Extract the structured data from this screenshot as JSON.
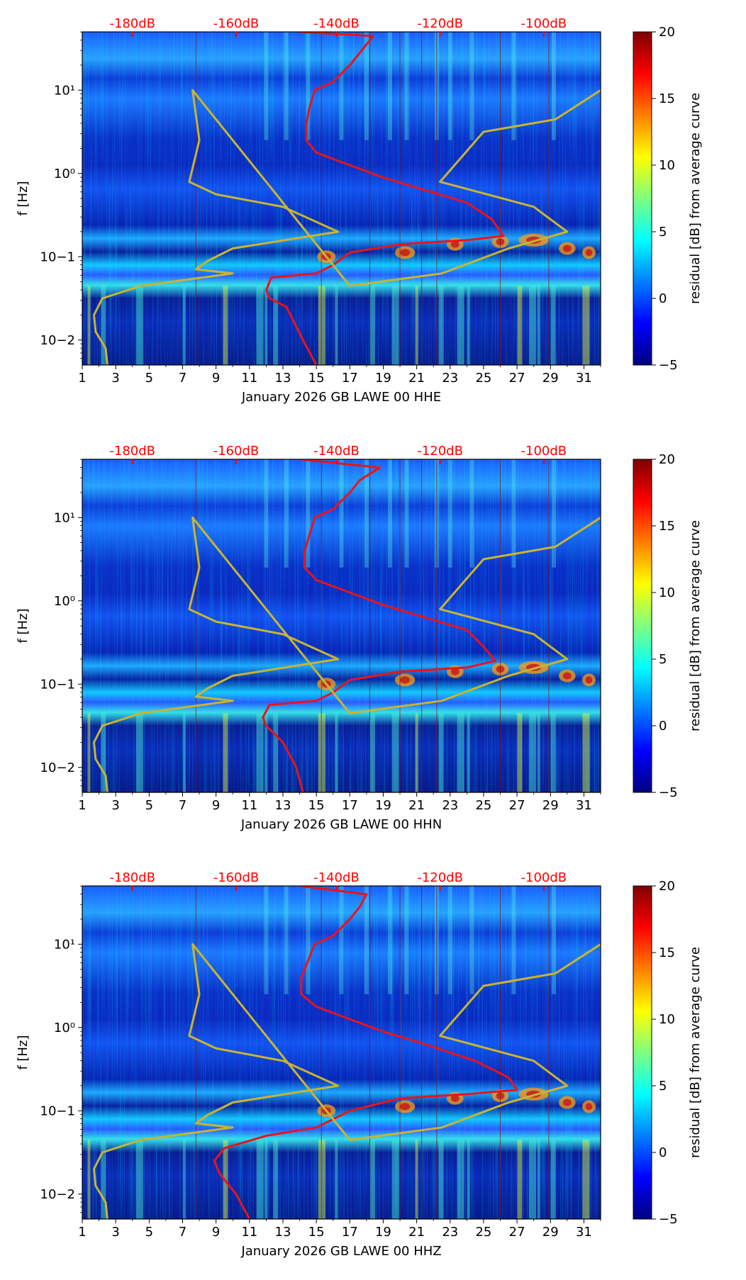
{
  "figure": {
    "title": ""
  },
  "colors": {
    "red_curve": "#e8141c",
    "yellow_curve": "#c8b432",
    "top_label": "#ff0000",
    "colormap": [
      "#00007f",
      "#0000ff",
      "#007fff",
      "#00ffff",
      "#7fff7f",
      "#ffff00",
      "#ff7f00",
      "#ff0000",
      "#7f0000"
    ]
  },
  "chart_data": [
    {
      "type": "heatmap",
      "xlabel": "January 2026 GB LAWE 00 HHE",
      "ylabel": "f [Hz]",
      "xlim": [
        1,
        32
      ],
      "ylim_log10": [
        -2.3,
        1.7
      ],
      "x_ticks": [
        "1",
        "3",
        "5",
        "7",
        "9",
        "11",
        "13",
        "15",
        "17",
        "19",
        "21",
        "23",
        "25",
        "27",
        "29",
        "31"
      ],
      "y_ticks": [
        "10−2",
        "10−1",
        "10⁰",
        "10¹"
      ],
      "top_ticks": [
        "-180dB",
        "-160dB",
        "-140dB",
        "-120dB",
        "-100dB"
      ],
      "colorbar": {
        "label": "residual [dB] from average curve",
        "range": [
          -5,
          20
        ],
        "ticks": [
          "−5",
          "0",
          "5",
          "10",
          "15",
          "20"
        ]
      },
      "series": [
        {
          "name": "average PSD (red)",
          "points": [
            [
              15.0,
              -2.3
            ],
            [
              14.2,
              -2.0
            ],
            [
              13.2,
              -1.6
            ],
            [
              12.2,
              -1.5
            ],
            [
              12.0,
              -1.4
            ],
            [
              12.3,
              -1.25
            ],
            [
              15.0,
              -1.2
            ],
            [
              16.0,
              -1.1
            ],
            [
              17.0,
              -0.95
            ],
            [
              20.0,
              -0.85
            ],
            [
              24.0,
              -0.8
            ],
            [
              26.2,
              -0.75
            ],
            [
              25.5,
              -0.55
            ],
            [
              24.0,
              -0.35
            ],
            [
              21.5,
              -0.2
            ],
            [
              19.0,
              -0.05
            ],
            [
              17.0,
              0.1
            ],
            [
              15.0,
              0.25
            ],
            [
              14.4,
              0.4
            ],
            [
              14.4,
              0.6
            ],
            [
              14.6,
              0.8
            ],
            [
              14.9,
              1.0
            ],
            [
              16.0,
              1.1
            ],
            [
              17.0,
              1.3
            ],
            [
              17.6,
              1.45
            ],
            [
              18.4,
              1.65
            ],
            [
              14.0,
              1.7
            ]
          ]
        },
        {
          "name": "noise model (yellow)",
          "points": [
            [
              2.5,
              -2.3
            ],
            [
              2.4,
              -2.1
            ],
            [
              1.8,
              -1.9
            ],
            [
              1.7,
              -1.7
            ],
            [
              2.2,
              -1.5
            ],
            [
              4.5,
              -1.35
            ],
            [
              10.0,
              -1.2
            ],
            [
              7.8,
              -1.15
            ],
            [
              8.5,
              -1.05
            ],
            [
              10.0,
              -0.9
            ],
            [
              16.3,
              -0.7
            ],
            [
              13.0,
              -0.4
            ],
            [
              9.0,
              -0.25
            ],
            [
              7.4,
              -0.1
            ],
            [
              8.0,
              0.4
            ],
            [
              7.6,
              1.0
            ],
            [
              17.0,
              -1.35
            ],
            [
              22.5,
              -1.2
            ],
            [
              26.5,
              -0.9
            ],
            [
              30.0,
              -0.7
            ],
            [
              28.0,
              -0.4
            ],
            [
              22.4,
              -0.1
            ],
            [
              25.0,
              0.5
            ],
            [
              29.3,
              0.65
            ],
            [
              32.0,
              1.0
            ]
          ]
        }
      ]
    },
    {
      "type": "heatmap",
      "xlabel": "January 2026 GB LAWE 00 HHN",
      "ylabel": "f [Hz]",
      "xlim": [
        1,
        32
      ],
      "ylim_log10": [
        -2.3,
        1.7
      ],
      "x_ticks": [
        "1",
        "3",
        "5",
        "7",
        "9",
        "11",
        "13",
        "15",
        "17",
        "19",
        "21",
        "23",
        "25",
        "27",
        "29",
        "31"
      ],
      "y_ticks": [
        "10−2",
        "10−1",
        "10⁰",
        "10¹"
      ],
      "top_ticks": [
        "-180dB",
        "-160dB",
        "-140dB",
        "-120dB",
        "-100dB"
      ],
      "colorbar": {
        "label": "residual [dB] from average curve",
        "range": [
          -5,
          20
        ],
        "ticks": [
          "−5",
          "0",
          "5",
          "10",
          "15",
          "20"
        ]
      },
      "series": [
        {
          "name": "average PSD (red)",
          "points": [
            [
              14.2,
              -2.3
            ],
            [
              13.8,
              -2.0
            ],
            [
              13.0,
              -1.7
            ],
            [
              12.0,
              -1.5
            ],
            [
              11.8,
              -1.4
            ],
            [
              12.2,
              -1.25
            ],
            [
              15.0,
              -1.2
            ],
            [
              16.0,
              -1.1
            ],
            [
              17.0,
              -0.95
            ],
            [
              20.0,
              -0.85
            ],
            [
              24.0,
              -0.8
            ],
            [
              25.7,
              -0.72
            ],
            [
              25.0,
              -0.55
            ],
            [
              24.0,
              -0.35
            ],
            [
              21.5,
              -0.2
            ],
            [
              19.0,
              -0.05
            ],
            [
              17.0,
              0.1
            ],
            [
              15.0,
              0.25
            ],
            [
              14.3,
              0.4
            ],
            [
              14.3,
              0.6
            ],
            [
              14.6,
              0.8
            ],
            [
              14.9,
              1.0
            ],
            [
              16.0,
              1.1
            ],
            [
              17.0,
              1.3
            ],
            [
              17.6,
              1.45
            ],
            [
              18.8,
              1.6
            ],
            [
              14.0,
              1.7
            ]
          ]
        },
        {
          "name": "noise model (yellow)",
          "points": [
            [
              2.5,
              -2.3
            ],
            [
              2.4,
              -2.1
            ],
            [
              1.8,
              -1.9
            ],
            [
              1.7,
              -1.7
            ],
            [
              2.2,
              -1.5
            ],
            [
              4.5,
              -1.35
            ],
            [
              10.0,
              -1.2
            ],
            [
              7.8,
              -1.15
            ],
            [
              8.5,
              -1.05
            ],
            [
              10.0,
              -0.9
            ],
            [
              16.3,
              -0.7
            ],
            [
              13.0,
              -0.4
            ],
            [
              9.0,
              -0.25
            ],
            [
              7.4,
              -0.1
            ],
            [
              8.0,
              0.4
            ],
            [
              7.6,
              1.0
            ],
            [
              17.0,
              -1.35
            ],
            [
              22.5,
              -1.2
            ],
            [
              26.5,
              -0.9
            ],
            [
              30.0,
              -0.7
            ],
            [
              28.0,
              -0.4
            ],
            [
              22.4,
              -0.1
            ],
            [
              25.0,
              0.5
            ],
            [
              29.3,
              0.65
            ],
            [
              32.0,
              1.0
            ]
          ]
        }
      ]
    },
    {
      "type": "heatmap",
      "xlabel": "January 2026 GB LAWE 00 HHZ",
      "ylabel": "f [Hz]",
      "xlim": [
        1,
        32
      ],
      "ylim_log10": [
        -2.3,
        1.7
      ],
      "x_ticks": [
        "1",
        "3",
        "5",
        "7",
        "9",
        "11",
        "13",
        "15",
        "17",
        "19",
        "21",
        "23",
        "25",
        "27",
        "29",
        "31"
      ],
      "y_ticks": [
        "10−2",
        "10−1",
        "10⁰",
        "10¹"
      ],
      "top_ticks": [
        "-180dB",
        "-160dB",
        "-140dB",
        "-120dB",
        "-100dB"
      ],
      "colorbar": {
        "label": "residual [dB] from average curve",
        "range": [
          -5,
          20
        ],
        "ticks": [
          "−5",
          "0",
          "5",
          "10",
          "15",
          "20"
        ]
      },
      "series": [
        {
          "name": "average PSD (red)",
          "points": [
            [
              11.0,
              -2.3
            ],
            [
              10.2,
              -2.0
            ],
            [
              9.2,
              -1.75
            ],
            [
              8.9,
              -1.6
            ],
            [
              9.5,
              -1.45
            ],
            [
              12.0,
              -1.3
            ],
            [
              15.0,
              -1.2
            ],
            [
              17.0,
              -1.0
            ],
            [
              20.0,
              -0.85
            ],
            [
              24.0,
              -0.8
            ],
            [
              27.0,
              -0.75
            ],
            [
              26.5,
              -0.6
            ],
            [
              24.5,
              -0.4
            ],
            [
              21.5,
              -0.2
            ],
            [
              19.0,
              -0.05
            ],
            [
              17.0,
              0.1
            ],
            [
              15.0,
              0.25
            ],
            [
              14.1,
              0.4
            ],
            [
              14.1,
              0.6
            ],
            [
              14.5,
              0.8
            ],
            [
              14.9,
              1.0
            ],
            [
              16.0,
              1.1
            ],
            [
              17.0,
              1.3
            ],
            [
              17.6,
              1.45
            ],
            [
              18.0,
              1.6
            ],
            [
              14.0,
              1.7
            ]
          ]
        },
        {
          "name": "noise model (yellow)",
          "points": [
            [
              2.5,
              -2.3
            ],
            [
              2.4,
              -2.1
            ],
            [
              1.8,
              -1.9
            ],
            [
              1.7,
              -1.7
            ],
            [
              2.2,
              -1.5
            ],
            [
              4.5,
              -1.35
            ],
            [
              10.0,
              -1.2
            ],
            [
              7.8,
              -1.15
            ],
            [
              8.5,
              -1.05
            ],
            [
              10.0,
              -0.9
            ],
            [
              16.3,
              -0.7
            ],
            [
              13.0,
              -0.4
            ],
            [
              9.0,
              -0.25
            ],
            [
              7.4,
              -0.1
            ],
            [
              8.0,
              0.4
            ],
            [
              7.6,
              1.0
            ],
            [
              17.0,
              -1.35
            ],
            [
              22.5,
              -1.2
            ],
            [
              26.5,
              -0.9
            ],
            [
              30.0,
              -0.7
            ],
            [
              28.0,
              -0.4
            ],
            [
              22.4,
              -0.1
            ],
            [
              25.0,
              0.5
            ],
            [
              29.3,
              0.65
            ],
            [
              32.0,
              1.0
            ]
          ]
        }
      ]
    }
  ]
}
